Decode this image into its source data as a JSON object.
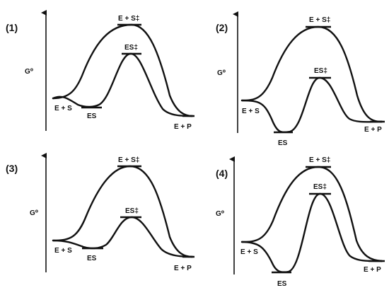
{
  "panels": [
    {
      "number": "(1)",
      "y_axis": "G⁰",
      "labels": {
        "es_ts": "E + S‡",
        "complex_ts": "ES‡",
        "reactants": "E + S",
        "complex": "ES",
        "products": "E + P"
      }
    },
    {
      "number": "(2)",
      "y_axis": "G⁰",
      "labels": {
        "es_ts": "E + S‡",
        "complex_ts": "ES‡",
        "reactants": "E + S",
        "complex": "ES",
        "products": "E + P"
      }
    },
    {
      "number": "(3)",
      "y_axis": "G⁰",
      "labels": {
        "es_ts": "E + S‡",
        "complex_ts": "ES‡",
        "reactants": "E + S",
        "complex": "ES",
        "products": "E + P"
      }
    },
    {
      "number": "(4)",
      "y_axis": "G⁰",
      "labels": {
        "es_ts": "E + S‡",
        "complex_ts": "ES‡",
        "reactants": "E + S",
        "complex": "ES",
        "products": "E + P"
      }
    }
  ]
}
